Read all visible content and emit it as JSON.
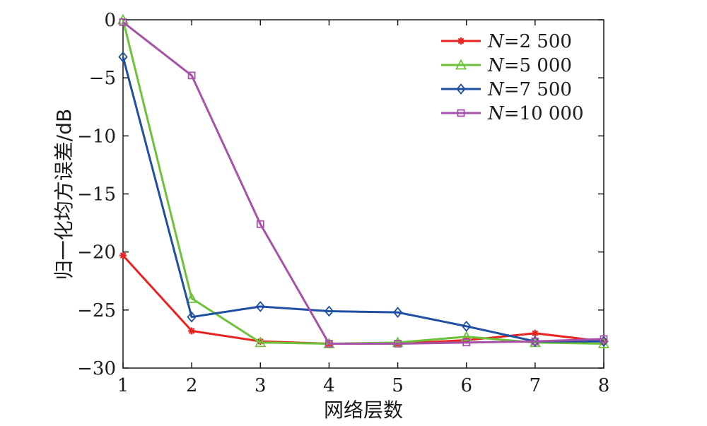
{
  "chart_data": {
    "type": "line",
    "title": "",
    "xlabel": "网络层数",
    "ylabel": "归一化均方误差/dB",
    "xlim": [
      1,
      8
    ],
    "ylim": [
      -30,
      0
    ],
    "xticks": [
      1,
      2,
      3,
      4,
      5,
      6,
      7,
      8
    ],
    "yticks": [
      0,
      -5,
      -10,
      -15,
      -20,
      -25,
      -30
    ],
    "ytick_labels": [
      "0",
      "−5",
      "−10",
      "−15",
      "−20",
      "−25",
      "−30"
    ],
    "grid": false,
    "legend_position": "top-right",
    "x": [
      1,
      2,
      3,
      4,
      5,
      6,
      7,
      8
    ],
    "series": [
      {
        "name_var": "N",
        "name_value": "=2 500",
        "color": "#e8231f",
        "marker": "star",
        "values": [
          -20.3,
          -26.8,
          -27.7,
          -27.9,
          -27.9,
          -27.6,
          -27.0,
          -27.7
        ]
      },
      {
        "name_var": "N",
        "name_value": "=5 000",
        "color": "#6ec23a",
        "marker": "triangle",
        "values": [
          0.0,
          -24.0,
          -27.8,
          -27.9,
          -27.8,
          -27.3,
          -27.8,
          -27.9
        ]
      },
      {
        "name_var": "N",
        "name_value": "=7 500",
        "color": "#1f4fa3",
        "marker": "diamond",
        "values": [
          -3.2,
          -25.6,
          -24.7,
          -25.1,
          -25.2,
          -26.4,
          -27.7,
          -27.7
        ]
      },
      {
        "name_var": "N",
        "name_value": "=10 000",
        "color": "#a552a8",
        "marker": "square",
        "values": [
          -0.2,
          -4.8,
          -17.6,
          -27.9,
          -27.9,
          -27.8,
          -27.7,
          -27.5
        ]
      }
    ]
  }
}
